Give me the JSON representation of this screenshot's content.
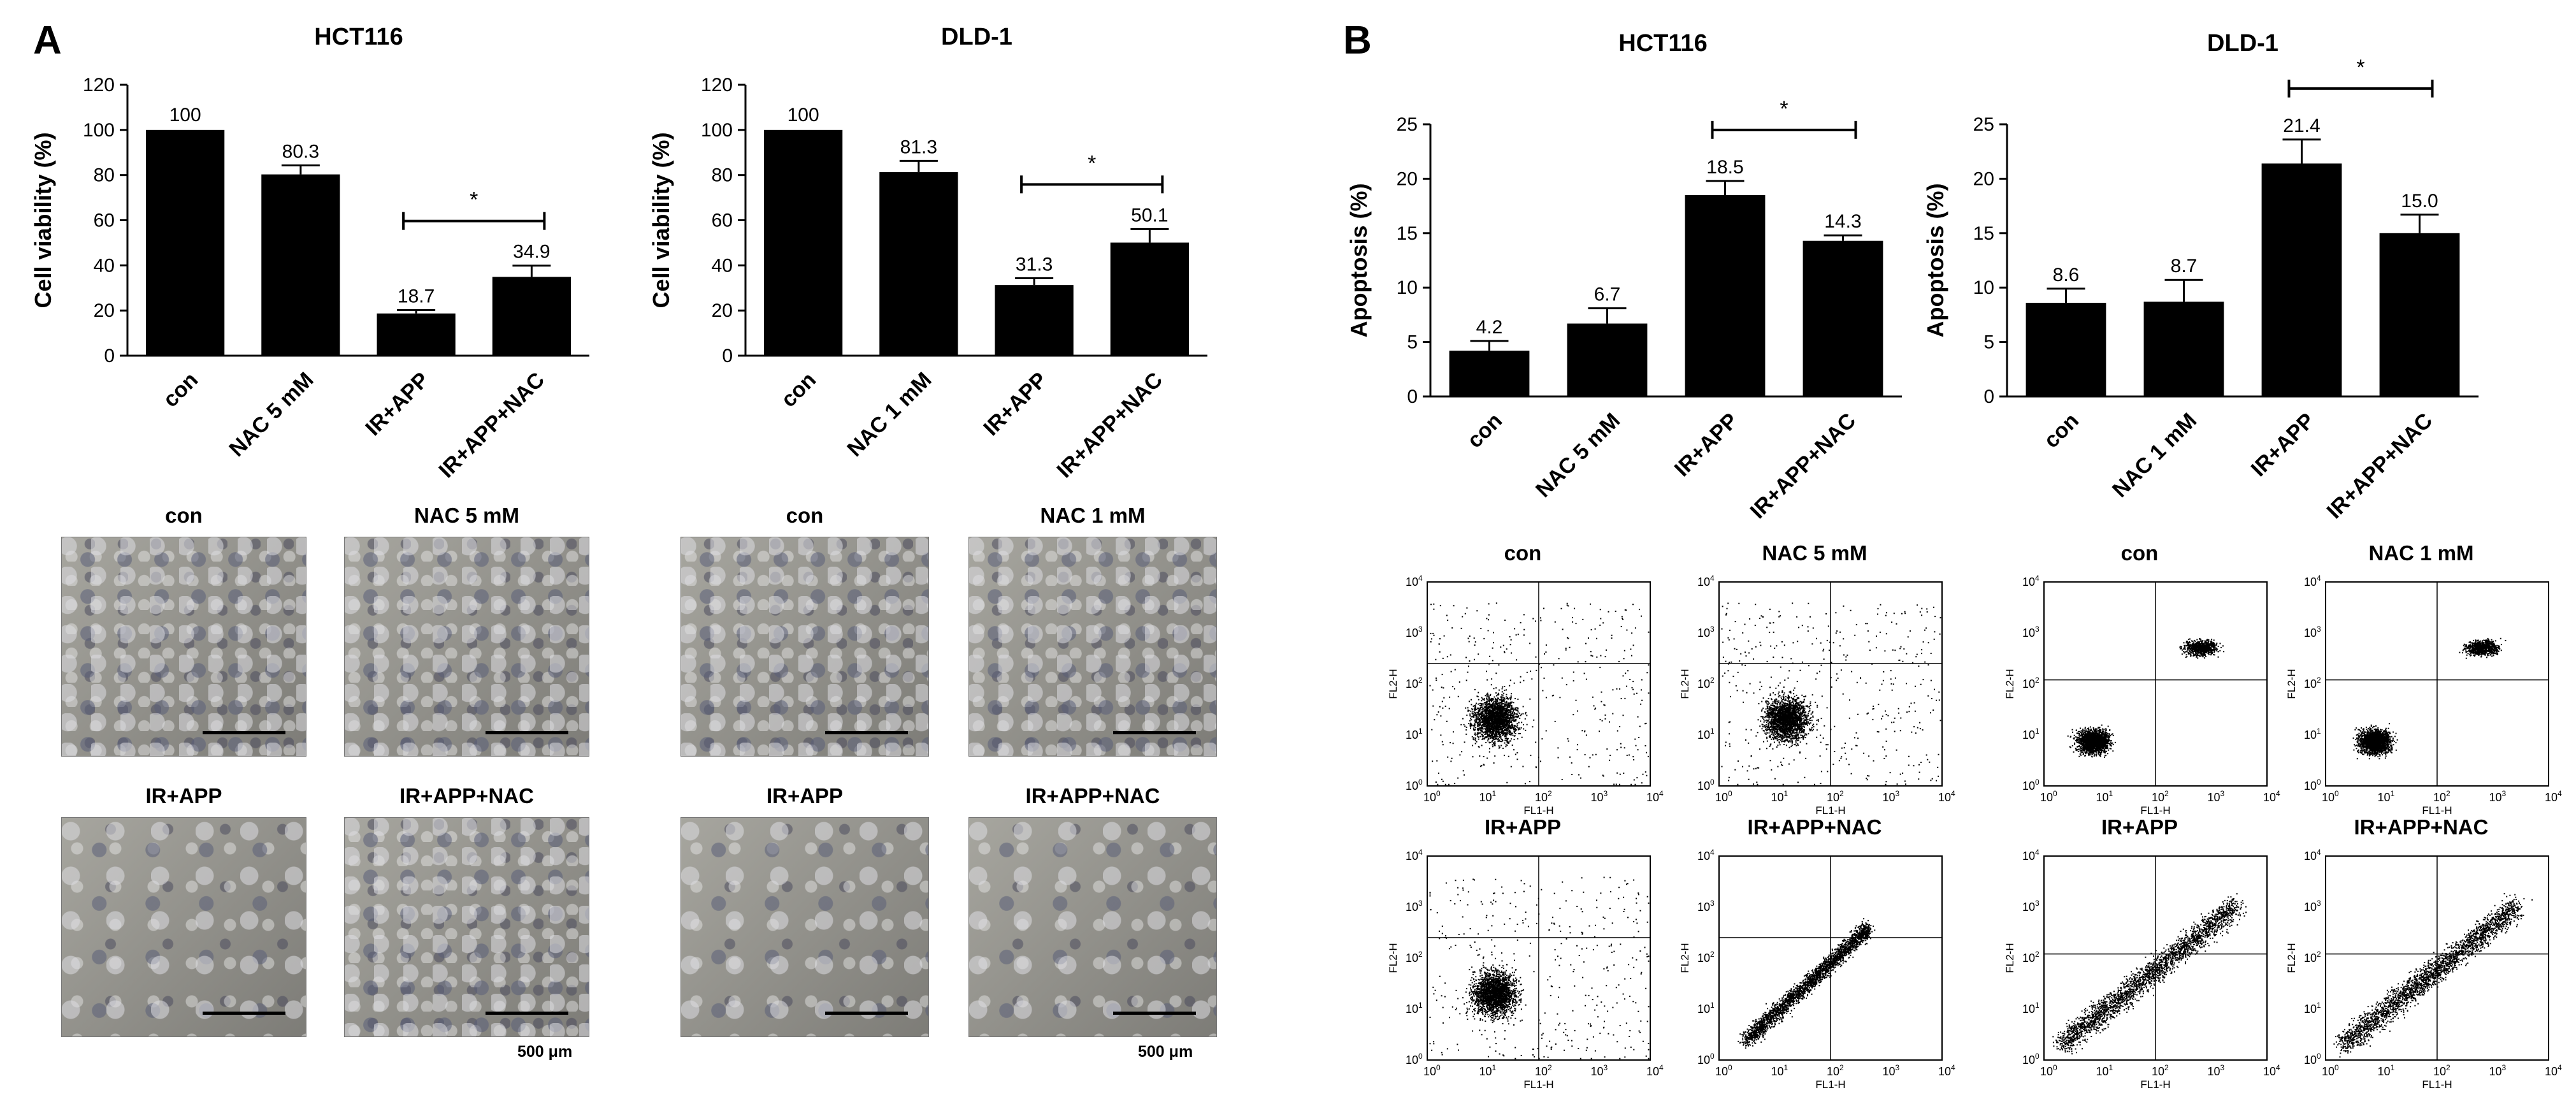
{
  "panels": {
    "A": "A",
    "B": "B"
  },
  "chart_data": [
    {
      "type": "bar",
      "title": "HCT116",
      "ylabel": "Cell viability (%)",
      "xlabel": "",
      "categories": [
        "con",
        "NAC 5 mM",
        "IR+APP",
        "IR+APP+NAC"
      ],
      "values": [
        100,
        80.3,
        18.7,
        34.9
      ],
      "value_labels": [
        "100",
        "80.3",
        "18.7",
        "34.9"
      ],
      "errors": [
        0,
        4,
        1.5,
        5
      ],
      "ylim": [
        0,
        120
      ],
      "yticks": [
        0,
        20,
        40,
        60,
        80,
        100,
        120
      ],
      "significance": {
        "from": 2,
        "to": 3,
        "label": "*"
      }
    },
    {
      "type": "bar",
      "title": "DLD-1",
      "ylabel": "Cell viability (%)",
      "xlabel": "",
      "categories": [
        "con",
        "NAC 1 mM",
        "IR+APP",
        "IR+APP+NAC"
      ],
      "values": [
        100,
        81.3,
        31.3,
        50.1
      ],
      "value_labels": [
        "100",
        "81.3",
        "31.3",
        "50.1"
      ],
      "errors": [
        0,
        5,
        3,
        6
      ],
      "ylim": [
        0,
        120
      ],
      "yticks": [
        0,
        20,
        40,
        60,
        80,
        100,
        120
      ],
      "significance": {
        "from": 2,
        "to": 3,
        "label": "*"
      }
    },
    {
      "type": "bar",
      "title": "HCT116",
      "ylabel": "Apoptosis (%)",
      "xlabel": "",
      "categories": [
        "con",
        "NAC 5 mM",
        "IR+APP",
        "IR+APP+NAC"
      ],
      "values": [
        4.2,
        6.7,
        18.5,
        14.3
      ],
      "value_labels": [
        "4.2",
        "6.7",
        "18.5",
        "14.3"
      ],
      "errors": [
        0.9,
        1.4,
        1.3,
        0.5
      ],
      "ylim": [
        0,
        25
      ],
      "yticks": [
        0,
        5,
        10,
        15,
        20,
        25
      ],
      "significance": {
        "from": 2,
        "to": 3,
        "label": "*"
      }
    },
    {
      "type": "bar",
      "title": "DLD-1",
      "ylabel": "Apoptosis (%)",
      "xlabel": "",
      "categories": [
        "con",
        "NAC 1 mM",
        "IR+APP",
        "IR+APP+NAC"
      ],
      "values": [
        8.6,
        8.7,
        21.4,
        15.0
      ],
      "value_labels": [
        "8.6",
        "8.7",
        "21.4",
        "15.0"
      ],
      "errors": [
        1.3,
        2.0,
        2.2,
        1.7
      ],
      "ylim": [
        0,
        25
      ],
      "yticks": [
        0,
        5,
        10,
        15,
        20,
        25
      ],
      "significance": {
        "from": 2,
        "to": 3,
        "label": "*"
      }
    }
  ],
  "microscopy": {
    "hct116": [
      "con",
      "NAC 5 mM",
      "IR+APP",
      "IR+APP+NAC"
    ],
    "dld1": [
      "con",
      "NAC 1 mM",
      "IR+APP",
      "IR+APP+NAC"
    ],
    "scale_label": "500 μm"
  },
  "flow_cytometry": {
    "hct116": [
      "con",
      "NAC 5 mM",
      "IR+APP",
      "IR+APP+NAC"
    ],
    "dld1": [
      "con",
      "NAC 1 mM",
      "IR+APP",
      "IR+APP+NAC"
    ],
    "x_axis_label": "FL1-H",
    "y_axis_label": "FL2-H",
    "tick_base": "10",
    "tick_exponents": [
      "0",
      "1",
      "2",
      "3",
      "4"
    ]
  }
}
